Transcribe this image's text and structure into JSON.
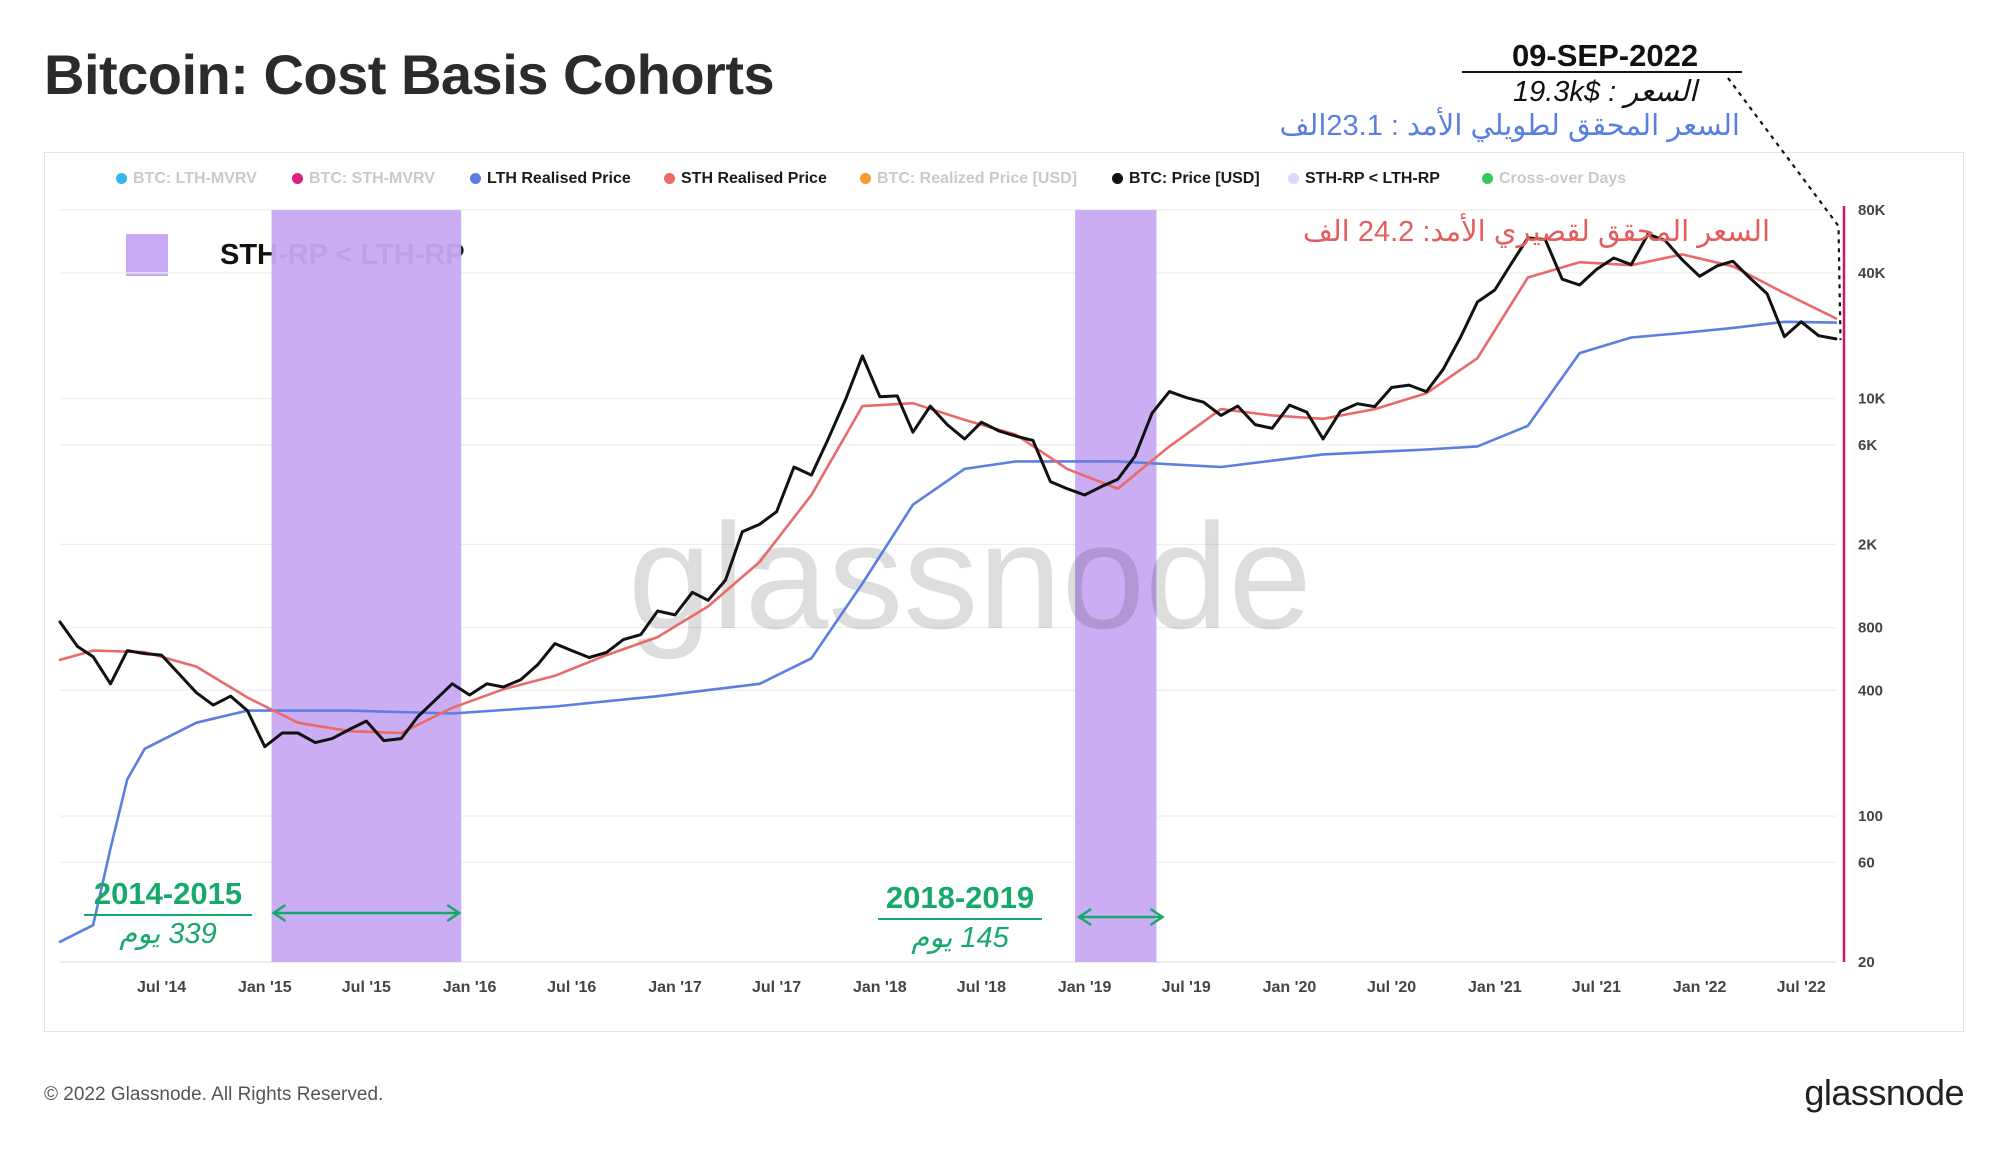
{
  "title": "Bitcoin: Cost Basis Cohorts",
  "legend": [
    {
      "label": "BTC: LTH-MVRV",
      "color": "#34b6ee",
      "active": false
    },
    {
      "label": "BTC: STH-MVRV",
      "color": "#e0217a",
      "active": false
    },
    {
      "label": "LTH Realised Price",
      "color": "#5b7fe0",
      "active": true
    },
    {
      "label": "STH Realised Price",
      "color": "#ea6a6a",
      "active": true
    },
    {
      "label": "BTC: Realized Price [USD]",
      "color": "#f59a2b",
      "active": false
    },
    {
      "label": "BTC: Price [USD]",
      "color": "#111111",
      "active": true
    },
    {
      "label": "STH-RP < LTH-RP",
      "color": "#e2d3fa",
      "active": true
    },
    {
      "label": "Cross-over Days",
      "color": "#34c759",
      "active": false
    }
  ],
  "shade_key_label": "STH-RP < LTH-RP",
  "annotations": {
    "date": "09-SEP-2022",
    "price": "السعر : $19.3k",
    "lth_rp": "السعر المحقق لطويلي الأمد : 23.1الف",
    "sth_rp": "السعر المحقق لقصيري الأمد: 24.2 الف"
  },
  "periods": [
    {
      "title": "2014-2015",
      "days": "339 يوم"
    },
    {
      "title": "2018-2019",
      "days": "145 يوم"
    }
  ],
  "watermark": "glassnode",
  "footer": "© 2022 Glassnode. All Rights Reserved.",
  "brand": "glassnode",
  "chart_data": {
    "type": "line",
    "title": "Bitcoin: Cost Basis Cohorts",
    "y_scale": "log",
    "ylim": [
      20,
      80000
    ],
    "y_ticks": [
      20,
      60,
      100,
      400,
      800,
      2000,
      6000,
      10000,
      40000,
      80000
    ],
    "y_tick_labels": [
      "20",
      "60",
      "100",
      "400",
      "800",
      "2K",
      "6K",
      "10K",
      "40K",
      "80K"
    ],
    "xlim": [
      "2014-01",
      "2022-09"
    ],
    "x_ticks": [
      "2014-07",
      "2015-01",
      "2015-07",
      "2016-01",
      "2016-07",
      "2017-01",
      "2017-07",
      "2018-01",
      "2018-07",
      "2019-01",
      "2019-07",
      "2020-01",
      "2020-07",
      "2021-01",
      "2021-07",
      "2022-01",
      "2022-07"
    ],
    "x_tick_labels": [
      "Jul '14",
      "Jan '15",
      "Jul '15",
      "Jan '16",
      "Jul '16",
      "Jan '17",
      "Jul '17",
      "Jan '18",
      "Jul '18",
      "Jan '19",
      "Jul '19",
      "Jan '20",
      "Jul '20",
      "Jan '21",
      "Jul '21",
      "Jan '22",
      "Jul '22"
    ],
    "grid": true,
    "legend_position": "top",
    "highlight_date": "2022-09-09",
    "shaded_ranges": [
      {
        "start": "2015-01-13",
        "end": "2015-12-17",
        "label": "STH-RP < LTH-RP"
      },
      {
        "start": "2018-12-15",
        "end": "2019-05-09",
        "label": "STH-RP < LTH-RP"
      }
    ],
    "series": [
      {
        "name": "BTC: Price [USD]",
        "color": "#111111",
        "points": [
          [
            "2014-01",
            850
          ],
          [
            "2014-02",
            650
          ],
          [
            "2014-03",
            580
          ],
          [
            "2014-04",
            430
          ],
          [
            "2014-05",
            620
          ],
          [
            "2014-06",
            600
          ],
          [
            "2014-07",
            590
          ],
          [
            "2014-08",
            480
          ],
          [
            "2014-09",
            390
          ],
          [
            "2014-10",
            340
          ],
          [
            "2014-11",
            375
          ],
          [
            "2014-12",
            320
          ],
          [
            "2015-01",
            215
          ],
          [
            "2015-02",
            250
          ],
          [
            "2015-03",
            250
          ],
          [
            "2015-04",
            225
          ],
          [
            "2015-05",
            235
          ],
          [
            "2015-06",
            260
          ],
          [
            "2015-07",
            285
          ],
          [
            "2015-08",
            230
          ],
          [
            "2015-09",
            235
          ],
          [
            "2015-10",
            300
          ],
          [
            "2015-11",
            360
          ],
          [
            "2015-12",
            430
          ],
          [
            "2016-01",
            380
          ],
          [
            "2016-02",
            430
          ],
          [
            "2016-03",
            415
          ],
          [
            "2016-04",
            450
          ],
          [
            "2016-05",
            530
          ],
          [
            "2016-06",
            670
          ],
          [
            "2016-07",
            620
          ],
          [
            "2016-08",
            575
          ],
          [
            "2016-09",
            608
          ],
          [
            "2016-10",
            700
          ],
          [
            "2016-11",
            740
          ],
          [
            "2016-12",
            960
          ],
          [
            "2017-01",
            920
          ],
          [
            "2017-02",
            1180
          ],
          [
            "2017-03",
            1080
          ],
          [
            "2017-04",
            1350
          ],
          [
            "2017-05",
            2300
          ],
          [
            "2017-06",
            2500
          ],
          [
            "2017-07",
            2870
          ],
          [
            "2017-08",
            4700
          ],
          [
            "2017-09",
            4300
          ],
          [
            "2017-10",
            6400
          ],
          [
            "2017-11",
            9900
          ],
          [
            "2017-12",
            16000
          ],
          [
            "2018-01",
            10200
          ],
          [
            "2018-02",
            10300
          ],
          [
            "2018-03",
            6900
          ],
          [
            "2018-04",
            9200
          ],
          [
            "2018-05",
            7500
          ],
          [
            "2018-06",
            6400
          ],
          [
            "2018-07",
            7700
          ],
          [
            "2018-08",
            7000
          ],
          [
            "2018-09",
            6600
          ],
          [
            "2018-10",
            6300
          ],
          [
            "2018-11",
            4000
          ],
          [
            "2018-12",
            3700
          ],
          [
            "2019-01",
            3450
          ],
          [
            "2019-02",
            3800
          ],
          [
            "2019-03",
            4100
          ],
          [
            "2019-04",
            5300
          ],
          [
            "2019-05",
            8500
          ],
          [
            "2019-06",
            10800
          ],
          [
            "2019-07",
            10100
          ],
          [
            "2019-08",
            9600
          ],
          [
            "2019-09",
            8300
          ],
          [
            "2019-10",
            9200
          ],
          [
            "2019-11",
            7500
          ],
          [
            "2019-12",
            7200
          ],
          [
            "2020-01",
            9300
          ],
          [
            "2020-02",
            8600
          ],
          [
            "2020-03",
            6400
          ],
          [
            "2020-04",
            8700
          ],
          [
            "2020-05",
            9450
          ],
          [
            "2020-06",
            9150
          ],
          [
            "2020-07",
            11300
          ],
          [
            "2020-08",
            11600
          ],
          [
            "2020-09",
            10800
          ],
          [
            "2020-10",
            13800
          ],
          [
            "2020-11",
            19700
          ],
          [
            "2020-12",
            29000
          ],
          [
            "2021-01",
            33100
          ],
          [
            "2021-02",
            45000
          ],
          [
            "2021-03",
            58800
          ],
          [
            "2021-04",
            57700
          ],
          [
            "2021-05",
            37300
          ],
          [
            "2021-06",
            35000
          ],
          [
            "2021-07",
            41500
          ],
          [
            "2021-08",
            47100
          ],
          [
            "2021-09",
            43800
          ],
          [
            "2021-10",
            61300
          ],
          [
            "2021-11",
            57000
          ],
          [
            "2021-12",
            46200
          ],
          [
            "2022-01",
            38500
          ],
          [
            "2022-02",
            43200
          ],
          [
            "2022-03",
            45500
          ],
          [
            "2022-04",
            37700
          ],
          [
            "2022-05",
            31800
          ],
          [
            "2022-06",
            19800
          ],
          [
            "2022-07",
            23300
          ],
          [
            "2022-08",
            20000
          ],
          [
            "2022-09",
            19300
          ]
        ]
      },
      {
        "name": "STH Realised Price",
        "color": "#ea6a6a",
        "points": [
          [
            "2014-01",
            560
          ],
          [
            "2014-03",
            620
          ],
          [
            "2014-06",
            610
          ],
          [
            "2014-09",
            520
          ],
          [
            "2014-12",
            370
          ],
          [
            "2015-03",
            280
          ],
          [
            "2015-06",
            255
          ],
          [
            "2015-09",
            250
          ],
          [
            "2015-12",
            330
          ],
          [
            "2016-03",
            405
          ],
          [
            "2016-06",
            470
          ],
          [
            "2016-09",
            590
          ],
          [
            "2016-12",
            720
          ],
          [
            "2017-03",
            1010
          ],
          [
            "2017-06",
            1650
          ],
          [
            "2017-09",
            3450
          ],
          [
            "2017-12",
            9200
          ],
          [
            "2018-03",
            9500
          ],
          [
            "2018-06",
            7900
          ],
          [
            "2018-09",
            6700
          ],
          [
            "2018-12",
            4600
          ],
          [
            "2019-03",
            3700
          ],
          [
            "2019-06",
            5900
          ],
          [
            "2019-09",
            8900
          ],
          [
            "2019-12",
            8300
          ],
          [
            "2020-03",
            8000
          ],
          [
            "2020-06",
            8900
          ],
          [
            "2020-09",
            10600
          ],
          [
            "2020-12",
            15600
          ],
          [
            "2021-03",
            38000
          ],
          [
            "2021-06",
            45000
          ],
          [
            "2021-09",
            43500
          ],
          [
            "2021-12",
            49000
          ],
          [
            "2022-03",
            43000
          ],
          [
            "2022-06",
            32000
          ],
          [
            "2022-09",
            24200
          ]
        ]
      },
      {
        "name": "LTH Realised Price",
        "color": "#5b7fe0",
        "points": [
          [
            "2014-01",
            25
          ],
          [
            "2014-03",
            30
          ],
          [
            "2014-04",
            70
          ],
          [
            "2014-05",
            150
          ],
          [
            "2014-06",
            210
          ],
          [
            "2014-09",
            280
          ],
          [
            "2014-12",
            320
          ],
          [
            "2015-06",
            320
          ],
          [
            "2015-12",
            310
          ],
          [
            "2016-06",
            335
          ],
          [
            "2016-12",
            375
          ],
          [
            "2017-06",
            430
          ],
          [
            "2017-09",
            570
          ],
          [
            "2017-12",
            1300
          ],
          [
            "2018-03",
            3100
          ],
          [
            "2018-06",
            4600
          ],
          [
            "2018-09",
            5000
          ],
          [
            "2019-03",
            5000
          ],
          [
            "2019-09",
            4700
          ],
          [
            "2020-03",
            5400
          ],
          [
            "2020-09",
            5700
          ],
          [
            "2020-12",
            5900
          ],
          [
            "2021-03",
            7400
          ],
          [
            "2021-06",
            16500
          ],
          [
            "2021-09",
            19600
          ],
          [
            "2021-12",
            20600
          ],
          [
            "2022-03",
            21800
          ],
          [
            "2022-06",
            23300
          ],
          [
            "2022-09",
            23100
          ]
        ]
      }
    ],
    "secondary_axis": {
      "color": "#c6196b"
    }
  }
}
